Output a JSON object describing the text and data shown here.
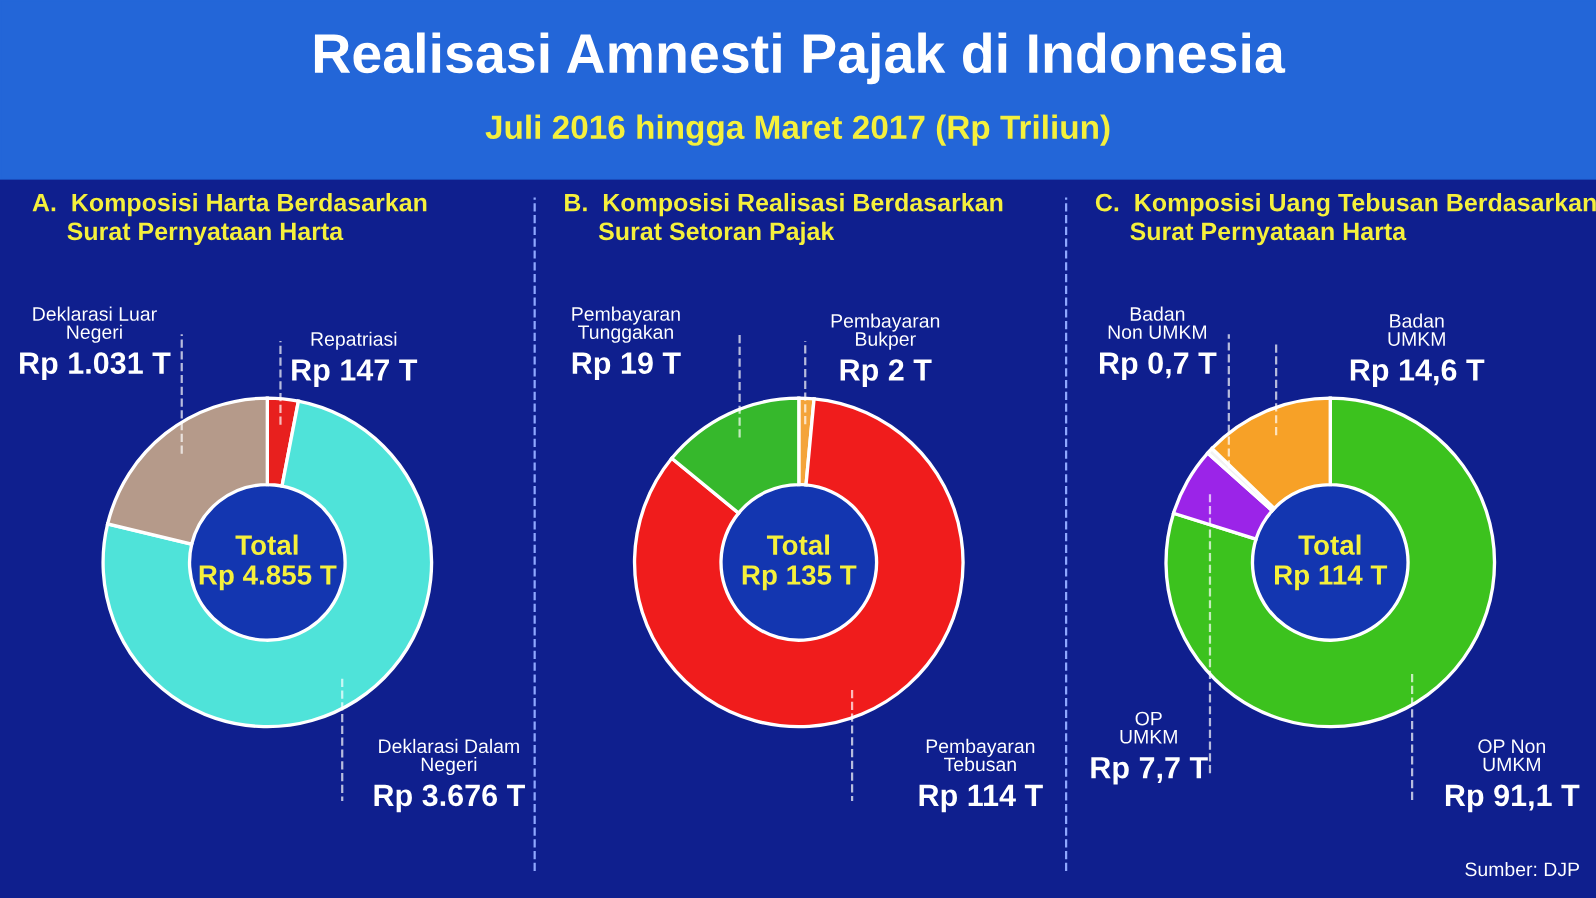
{
  "chart_data": [
    {
      "type": "donut",
      "title": "A.  Komposisi Harta Berdasarkan\n     Surat Pernyataan Harta",
      "categories": [
        "Repatriasi",
        "Deklarasi Dalam\nNegeri",
        "Deklarasi Luar\nNegeri"
      ],
      "values": [
        147,
        3676,
        1031
      ],
      "value_labels": [
        "Rp 147 T",
        "Rp 3.676 T",
        "Rp 1.031 T"
      ],
      "colors": [
        "#e8201e",
        "#4fe3d9",
        "#b59a8a"
      ],
      "annotations": [
        "Realisasi Amnesti Pajak di Indonesia",
        "Juli 2016 hingga Maret 2017 (Rp Triliun)",
        "Total\nRp 4.855 T"
      ]
    },
    {
      "type": "donut",
      "title": "B.  Komposisi Realisasi Berdasarkan\n     Surat Setoran Pajak",
      "categories": [
        "Pembayaran\nBukper",
        "Pembayaran\nTebusan",
        "Pembayaran\nTunggakan"
      ],
      "values": [
        2,
        114,
        19
      ],
      "value_labels": [
        "Rp 2 T",
        "Rp 114 T",
        "Rp 19 T"
      ],
      "colors": [
        "#f4a43a",
        "#f01c1c",
        "#36b82c"
      ],
      "annotations": [
        "Total\nRp 135 T"
      ]
    },
    {
      "type": "donut",
      "title": "C.  Komposisi Uang Tebusan Berdasarkan\n     Surat Pernyataan Harta",
      "categories": [
        "OP Non\nUMKM",
        "OP\nUMKM",
        "Badan\nNon UMKM",
        "Badan\nUMKM"
      ],
      "values": [
        91.1,
        7.7,
        0.7,
        14.6
      ],
      "value_labels": [
        "Rp 91,1 T",
        "Rp 7,7 T",
        "Rp 0,7 T",
        "Rp 14,6 T"
      ],
      "colors": [
        "#3cc21e",
        "#9b24e8",
        "#f2f2f2",
        "#f7a127"
      ],
      "annotations": [
        "Total\nRp 114 T",
        "Sumber: DJP"
      ]
    }
  ]
}
